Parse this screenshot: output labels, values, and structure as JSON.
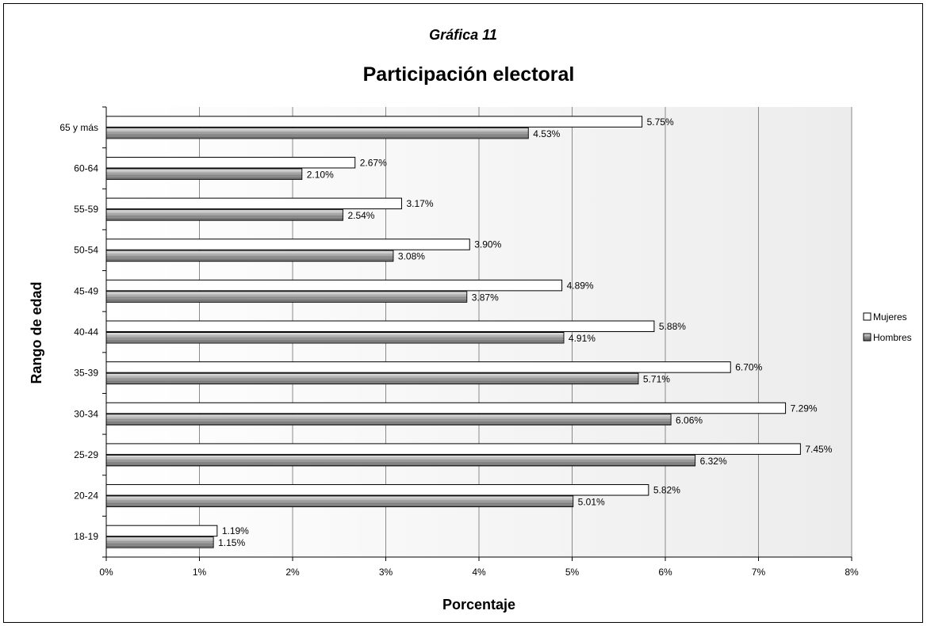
{
  "chart_data": {
    "type": "bar",
    "orientation": "horizontal",
    "supertitle": "Gráfica 11",
    "title": "Participación electoral",
    "xlabel": "Porcentaje",
    "ylabel": "Rango de edad",
    "xlim": [
      0,
      8
    ],
    "x_ticks": [
      "0%",
      "1%",
      "2%",
      "3%",
      "4%",
      "5%",
      "6%",
      "7%",
      "8%"
    ],
    "categories": [
      "18-19",
      "20-24",
      "25-29",
      "30-34",
      "35-39",
      "40-44",
      "45-49",
      "50-54",
      "55-59",
      "60-64",
      "65 y más"
    ],
    "series": [
      {
        "name": "Mujeres",
        "values": [
          1.19,
          5.82,
          7.45,
          7.29,
          6.7,
          5.88,
          4.89,
          3.9,
          3.17,
          2.67,
          5.75
        ],
        "labels": [
          "1.19%",
          "5.82%",
          "7.45%",
          "7.29%",
          "6.70%",
          "5.88%",
          "4.89%",
          "3.90%",
          "3.17%",
          "2.67%",
          "5.75%"
        ],
        "color": "#ffffff"
      },
      {
        "name": "Hombres",
        "values": [
          1.15,
          5.01,
          6.32,
          6.06,
          5.71,
          4.91,
          3.87,
          3.08,
          2.54,
          2.1,
          4.53
        ],
        "labels": [
          "1.15%",
          "5.01%",
          "6.32%",
          "6.06%",
          "5.71%",
          "4.91%",
          "3.87%",
          "3.08%",
          "2.54%",
          "2.10%",
          "4.53%"
        ],
        "color": "#9a9a9a"
      }
    ],
    "grid": "vertical",
    "legend": "right"
  }
}
